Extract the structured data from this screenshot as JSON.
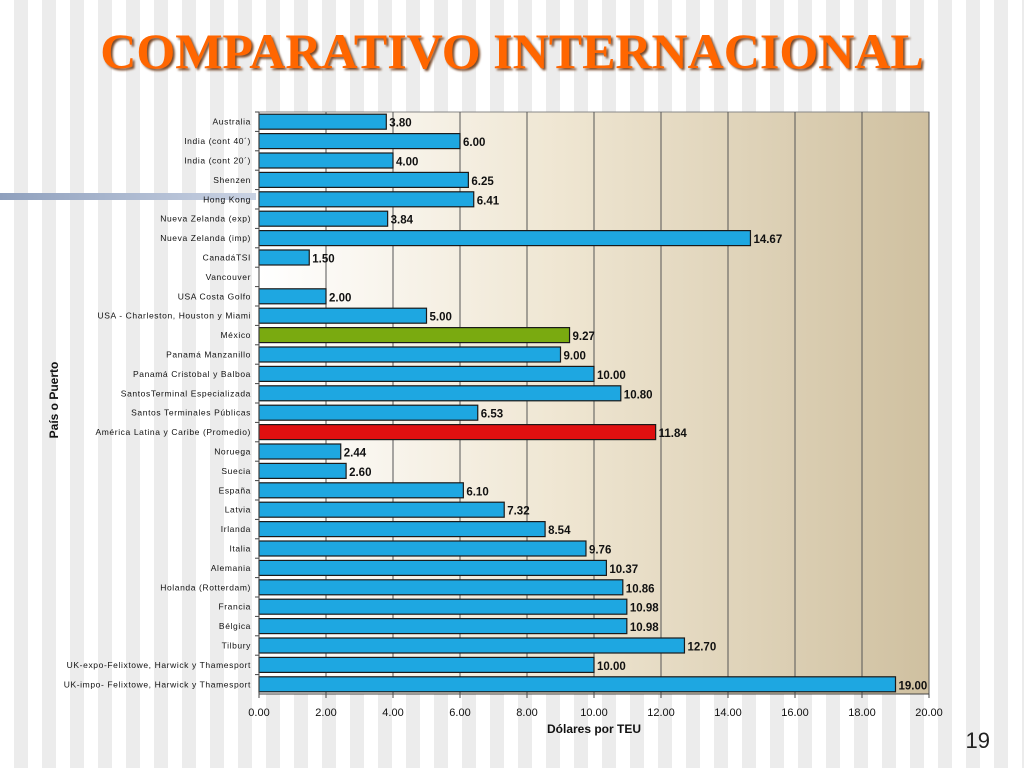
{
  "title": "COMPARATIVO INTERNACIONAL",
  "page_number": "19",
  "colors": {
    "title": "#ff6600",
    "bar_default": "#1ea7e1",
    "bar_mexico": "#7aaa10",
    "bar_latam": "#e01010"
  },
  "chart_data": {
    "type": "bar",
    "orientation": "horizontal",
    "xlabel": "Dólares por TEU",
    "ylabel": "País o Puerto",
    "xlim": [
      0,
      20
    ],
    "x_ticks": [
      "0.00",
      "2.00",
      "4.00",
      "6.00",
      "8.00",
      "10.00",
      "12.00",
      "14.00",
      "16.00",
      "18.00",
      "20.00"
    ],
    "grid": true,
    "categories": [
      "Australia",
      "India (cont 40´)",
      "India (cont 20´)",
      "Shenzen",
      "Hong Kong",
      "Nueva Zelanda (exp)",
      "Nueva Zelanda (imp)",
      "CanadáTSI",
      "Vancouver",
      "USA Costa Golfo",
      "USA - Charleston, Houston y Miami",
      "México",
      "Panamá Manzanillo",
      "Panamá Cristobal y Balboa",
      "SantosTerminal Especializada",
      "Santos Terminales Públicas",
      "América Latina  y Caribe (Promedio)",
      "Noruega",
      "Suecia",
      "España",
      "Latvia",
      "Irlanda",
      "Italia",
      "Alemania",
      "Holanda (Rotterdam)",
      "Francia",
      "Bélgica",
      "Tilbury",
      "UK-expo-Felixtowe, Harwick y Thamesport",
      "UK-impo- Felixtowe, Harwick y Thamesport"
    ],
    "values": [
      3.8,
      6.0,
      4.0,
      6.25,
      6.41,
      3.84,
      14.67,
      1.5,
      null,
      2.0,
      5.0,
      9.27,
      9.0,
      10.0,
      10.8,
      6.53,
      11.84,
      2.44,
      2.6,
      6.1,
      7.32,
      8.54,
      9.76,
      10.37,
      10.86,
      10.98,
      10.98,
      12.7,
      10.0,
      19.0
    ],
    "value_labels": [
      "3.80",
      "6.00",
      "4.00",
      "6.25",
      "6.41",
      "3.84",
      "14.67",
      "1.50",
      "",
      "2.00",
      "5.00",
      "9.27",
      "9.00",
      "10.00",
      "10.80",
      "6.53",
      "11.84",
      "2.44",
      "2.60",
      "6.10",
      "7.32",
      "8.54",
      "9.76",
      "10.37",
      "10.86",
      "10.98",
      "10.98",
      "12.70",
      "10.00",
      "19.00"
    ],
    "highlight": {
      "México": "#7aaa10",
      "América Latina  y Caribe (Promedio)": "#e01010"
    }
  }
}
